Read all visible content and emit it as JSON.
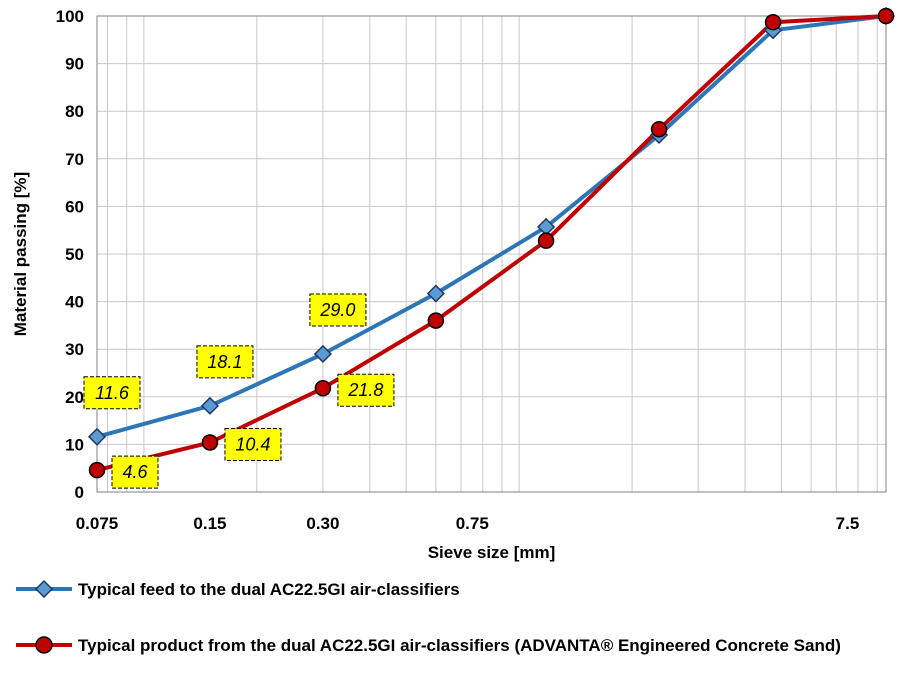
{
  "chart_data": {
    "type": "line",
    "xlabel": "Sieve size [mm]",
    "ylabel": "Material passing [%]",
    "x_scale": "log",
    "xlim": [
      0.075,
      9.5
    ],
    "ylim": [
      0,
      100
    ],
    "y_ticks": [
      0,
      10,
      20,
      30,
      40,
      50,
      60,
      70,
      80,
      90,
      100
    ],
    "x_tick_labels": [
      {
        "value": 0.075,
        "label": "0.075"
      },
      {
        "value": 0.15,
        "label": "0.15"
      },
      {
        "value": 0.3,
        "label": "0.30"
      },
      {
        "value": 0.75,
        "label": "0.75"
      },
      {
        "value": 7.5,
        "label": "7.5"
      }
    ],
    "grid": true,
    "legend_position": "bottom",
    "series": [
      {
        "name": "Typical feed to the dual AC22.5GI air-classifiers",
        "color": "#2E75B6",
        "marker": "diamond",
        "x": [
          0.075,
          0.15,
          0.3,
          0.6,
          1.18,
          2.36,
          4.75,
          9.5
        ],
        "y": [
          11.6,
          18.1,
          29.0,
          41.7,
          55.7,
          75.0,
          97.0,
          100
        ]
      },
      {
        "name": "Typical product from the dual AC22.5GI air-classifiers (ADVANTA® Engineered Concrete Sand)",
        "color": "#C00000",
        "marker": "circle",
        "x": [
          0.075,
          0.15,
          0.3,
          0.6,
          1.18,
          2.36,
          4.75,
          9.5
        ],
        "y": [
          4.6,
          10.4,
          21.8,
          36.0,
          52.8,
          76.2,
          98.7,
          100
        ]
      }
    ],
    "data_labels": [
      {
        "series": 0,
        "index": 0,
        "text": "11.6",
        "placement": "above"
      },
      {
        "series": 0,
        "index": 1,
        "text": "18.1",
        "placement": "above"
      },
      {
        "series": 0,
        "index": 2,
        "text": "29.0",
        "placement": "above"
      },
      {
        "series": 1,
        "index": 0,
        "text": "4.6",
        "placement": "right"
      },
      {
        "series": 1,
        "index": 1,
        "text": "10.4",
        "placement": "right"
      },
      {
        "series": 1,
        "index": 2,
        "text": "21.8",
        "placement": "right"
      }
    ],
    "data_label_style": {
      "background": "#FFFF00",
      "border": "#000000"
    }
  }
}
